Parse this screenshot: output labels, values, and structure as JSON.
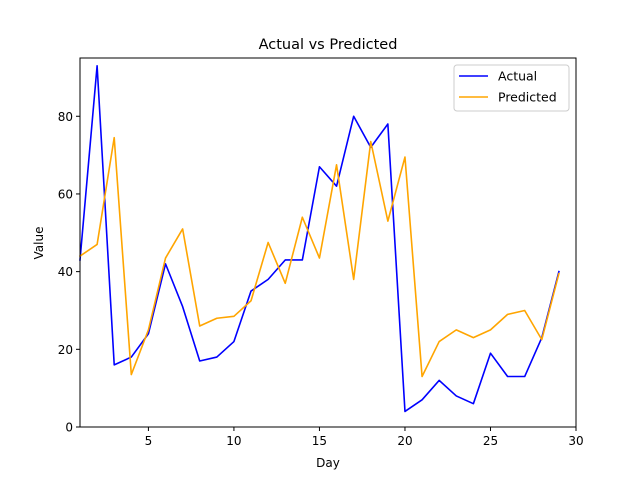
{
  "chart_data": {
    "type": "line",
    "title": "Actual vs Predicted",
    "xlabel": "Day",
    "ylabel": "Value",
    "xlim": [
      1,
      30
    ],
    "ylim": [
      0,
      95
    ],
    "xticks": [
      5,
      10,
      15,
      20,
      25,
      30
    ],
    "yticks": [
      0,
      20,
      40,
      60,
      80
    ],
    "grid": false,
    "legend_position": "top-right",
    "x": [
      1,
      2,
      3,
      4,
      5,
      6,
      7,
      8,
      9,
      10,
      11,
      12,
      13,
      14,
      15,
      16,
      17,
      18,
      19,
      20,
      21,
      22,
      23,
      24,
      25,
      26,
      27,
      28,
      29
    ],
    "series": [
      {
        "name": "Actual",
        "color": "#0000ff",
        "values": [
          43,
          93,
          16,
          18,
          24,
          42,
          31,
          17,
          18,
          22,
          35,
          38,
          43,
          43,
          67,
          62,
          80,
          72,
          78,
          4,
          7,
          12,
          8,
          6,
          19,
          13,
          13,
          23,
          40
        ]
      },
      {
        "name": "Predicted",
        "color": "#ffa500",
        "values": [
          44,
          47,
          74.5,
          13.5,
          25,
          43.5,
          51,
          26,
          28,
          28.5,
          32.5,
          47.5,
          37,
          54,
          43.5,
          67.5,
          38,
          73.5,
          53,
          69.5,
          13,
          22,
          25,
          23,
          25,
          29,
          30,
          22.5,
          39.5
        ]
      }
    ]
  }
}
